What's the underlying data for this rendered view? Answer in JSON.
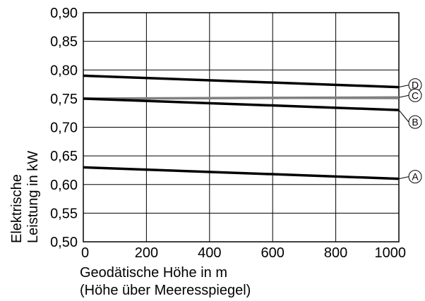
{
  "chart_data": {
    "type": "line",
    "x": [
      0,
      1000
    ],
    "xlim": [
      0,
      1000
    ],
    "ylim": [
      0.5,
      0.9
    ],
    "xticks": [
      "0",
      "200",
      "400",
      "600",
      "800",
      "1000"
    ],
    "yticks": [
      "0,50",
      "0,55",
      "0,60",
      "0,65",
      "0,70",
      "0,75",
      "0,80",
      "0,85",
      "0,90"
    ],
    "xlabel_line1": "Geodätische Höhe in m",
    "xlabel_line2": "(Höhe über Meeresspiegel)",
    "ylabel_line1": "Elektrische",
    "ylabel_line2": "Leistung in kW",
    "grid": true,
    "series": [
      {
        "name": "D",
        "values": [
          0.79,
          0.77
        ],
        "color": "#000000"
      },
      {
        "name": "C",
        "values": [
          0.75,
          0.752
        ],
        "color": "#808080"
      },
      {
        "name": "B",
        "values": [
          0.75,
          0.73
        ],
        "color": "#000000"
      },
      {
        "name": "A",
        "values": [
          0.63,
          0.61
        ],
        "color": "#000000"
      }
    ]
  }
}
